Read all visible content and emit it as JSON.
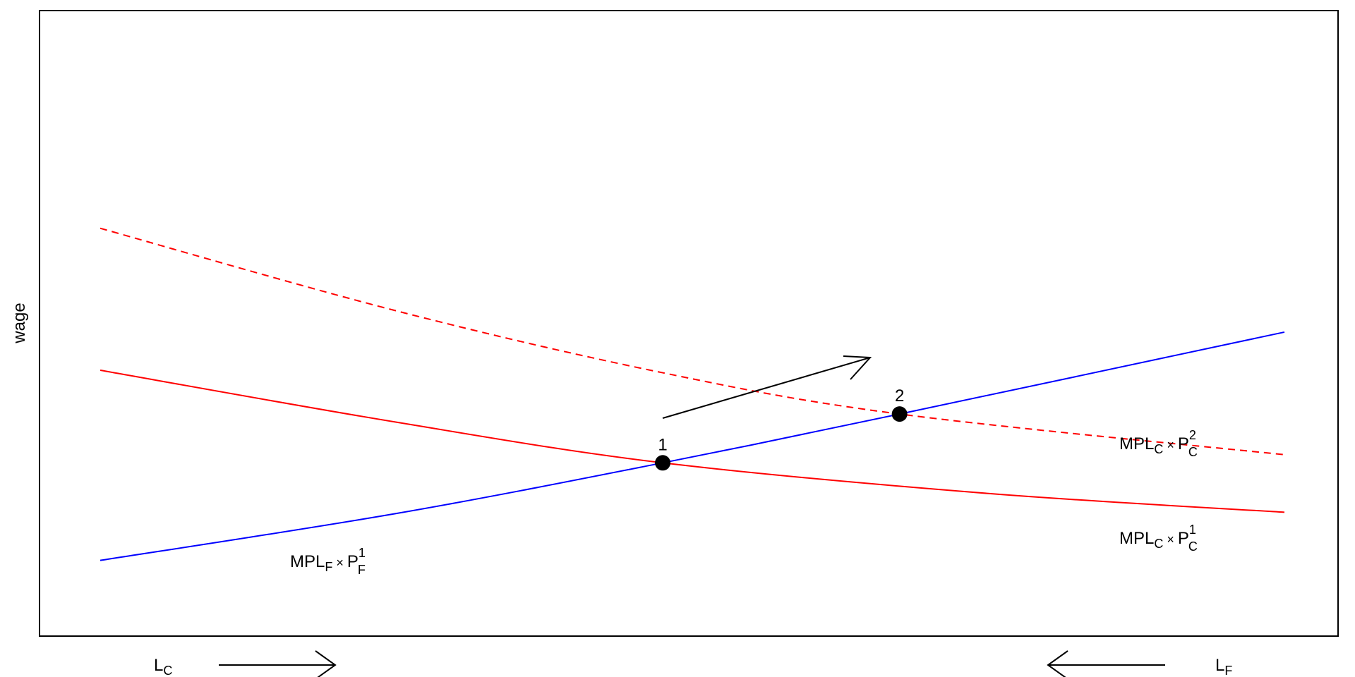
{
  "chart_data": {
    "type": "line",
    "title": "",
    "xlabel": "",
    "ylabel": "wage",
    "xlim": [
      0,
      100
    ],
    "ylim": [
      0,
      100
    ],
    "grid": false,
    "axis_ticks": false,
    "series": [
      {
        "id": "mplf_p1",
        "color": "#0000ff",
        "style": "solid",
        "x": [
          0,
          25,
          47.5,
          67.5,
          100
        ],
        "y": [
          12.1,
          19.6,
          27.7,
          35.5,
          48.6
        ]
      },
      {
        "id": "mplc_p1",
        "color": "#ff0000",
        "style": "solid",
        "x": [
          0,
          25,
          47.5,
          75,
          100
        ],
        "y": [
          42.5,
          34.2,
          27.7,
          22.8,
          19.8
        ]
      },
      {
        "id": "mplc_p2",
        "color": "#ff0000",
        "style": "dashed",
        "x": [
          0,
          25,
          47.5,
          67.5,
          100
        ],
        "y": [
          65.2,
          52.0,
          42.1,
          35.5,
          29.0
        ]
      }
    ],
    "points": [
      {
        "label": "1",
        "x": 47.5,
        "y": 27.7
      },
      {
        "label": "2",
        "x": 67.5,
        "y": 35.5
      }
    ],
    "curve_labels": {
      "mplf_p1": {
        "base": "MPL",
        "sub1": "F",
        "times": "×",
        "p": "P",
        "sup": "1",
        "sub2": "F"
      },
      "mplc_p2": {
        "base": "MPL",
        "sub1": "C",
        "times": "×",
        "p": "P",
        "sup": "2",
        "sub2": "C"
      },
      "mplc_p1": {
        "base": "MPL",
        "sub1": "C",
        "times": "×",
        "p": "P",
        "sup": "1",
        "sub2": "C"
      }
    },
    "bottom_labels": {
      "left": {
        "base": "L",
        "sub": "C",
        "arrow": "right"
      },
      "right": {
        "base": "L",
        "sub": "F",
        "arrow": "left"
      }
    }
  }
}
